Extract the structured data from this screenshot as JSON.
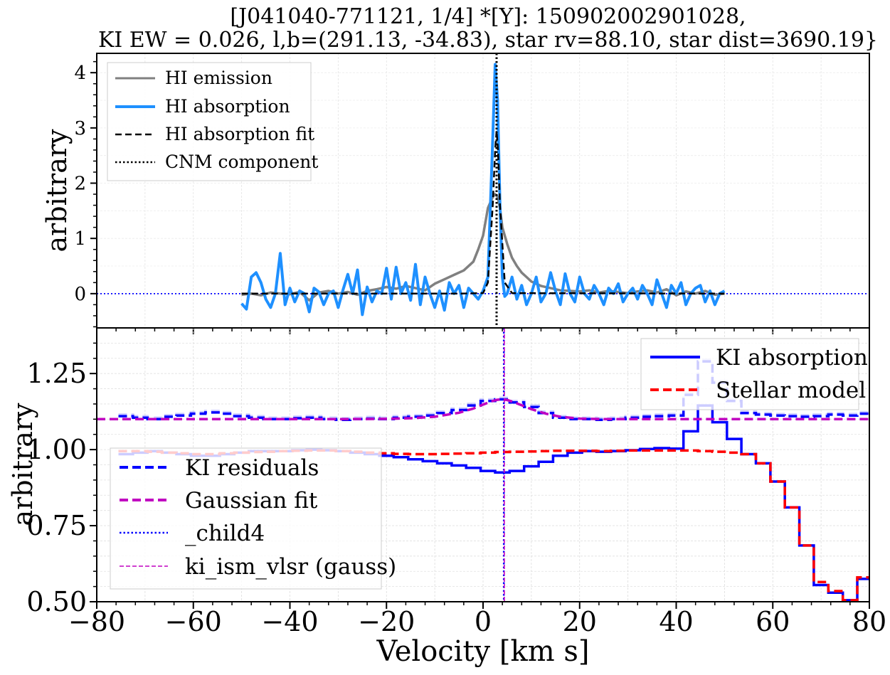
{
  "title": {
    "line1": "[J041040-771121, 1/4] *[Y]: 150902002901028,",
    "line2": "KI EW = 0.026, l,b=(291.13, -34.83), star rv=88.10, star dist=3690.19}"
  },
  "chart_data": [
    {
      "type": "line",
      "panel": "top",
      "ylabel": "arbitrary",
      "xlim": [
        -80,
        80
      ],
      "ylim": [
        -0.62,
        4.35
      ],
      "y_ticks": [
        0,
        1,
        2,
        3,
        4
      ],
      "y_tick_labels": [
        "0",
        "1",
        "2",
        "3",
        "4"
      ],
      "grid": true,
      "legend_position": "upper-left",
      "legend": [
        {
          "label": "HI emission",
          "color": "#808080",
          "style": "solid"
        },
        {
          "label": "HI absorption",
          "color": "#1e90ff",
          "style": "solid"
        },
        {
          "label": "HI absorption fit",
          "color": "#000000",
          "style": "dashed"
        },
        {
          "label": "CNM component",
          "color": "#000000",
          "style": "dotted"
        }
      ],
      "reference_lines": {
        "cnm_component_x": 2.8,
        "zero_line_y": 0
      },
      "series": [
        {
          "name": "HI emission",
          "color": "#808080",
          "x": [
            -50,
            -48,
            -46,
            -44,
            -42,
            -40,
            -38,
            -36,
            -34,
            -32,
            -30,
            -28,
            -26,
            -24,
            -22,
            -20,
            -18,
            -16,
            -14,
            -12,
            -10,
            -8,
            -6,
            -4,
            -2,
            -1,
            0,
            1,
            2,
            2.5,
            3,
            3.5,
            4,
            5,
            6,
            7,
            8,
            9,
            10,
            12,
            14,
            16,
            18,
            20,
            22,
            24,
            26,
            28,
            30,
            32,
            34,
            36,
            38,
            40,
            42,
            44,
            46,
            48,
            50
          ],
          "y": [
            -0.02,
            0.0,
            -0.03,
            0.02,
            0.0,
            -0.01,
            0.03,
            -0.12,
            0.02,
            0.05,
            0.0,
            0.03,
            -0.02,
            0.05,
            0.08,
            0.12,
            0.09,
            0.14,
            0.1,
            0.06,
            0.18,
            0.26,
            0.34,
            0.42,
            0.58,
            0.8,
            1.05,
            1.55,
            1.75,
            1.8,
            1.75,
            1.55,
            1.2,
            0.9,
            0.65,
            0.5,
            0.38,
            0.3,
            0.22,
            0.14,
            0.1,
            0.06,
            0.05,
            0.04,
            0.06,
            0.02,
            0.05,
            0.03,
            0.01,
            0.04,
            0.06,
            0.02,
            0.08,
            -0.03,
            0.04,
            0.0,
            0.05,
            -0.02,
            0.0
          ]
        },
        {
          "name": "HI absorption",
          "color": "#1e90ff",
          "x": [
            -50,
            -49,
            -48,
            -47,
            -46,
            -45,
            -44,
            -43,
            -42,
            -41,
            -40,
            -39,
            -38,
            -37,
            -36,
            -35,
            -34,
            -33,
            -32,
            -31,
            -30,
            -29,
            -28,
            -27,
            -26,
            -25,
            -24,
            -23,
            -22,
            -21,
            -20,
            -19,
            -18,
            -17,
            -16,
            -15,
            -14,
            -13,
            -12,
            -11,
            -10,
            -9,
            -8,
            -7,
            -6,
            -5,
            -4,
            -3,
            -2,
            -1,
            0,
            1,
            2,
            2.5,
            3,
            3.5,
            4,
            4.5,
            5,
            6,
            7,
            8,
            9,
            10,
            11,
            12,
            13,
            14,
            15,
            16,
            17,
            18,
            19,
            20,
            21,
            22,
            23,
            24,
            25,
            26,
            27,
            28,
            29,
            30,
            31,
            32,
            33,
            34,
            35,
            36,
            37,
            38,
            39,
            40,
            41,
            42,
            43,
            44,
            45,
            46,
            47,
            48,
            49,
            50
          ],
          "y": [
            -0.18,
            -0.28,
            0.3,
            0.38,
            0.2,
            -0.1,
            -0.25,
            0.0,
            0.73,
            -0.2,
            0.1,
            -0.15,
            0.05,
            0.0,
            -0.33,
            0.1,
            0.03,
            -0.2,
            0.0,
            0.05,
            -0.25,
            0.07,
            0.35,
            0.0,
            0.43,
            -0.38,
            0.12,
            -0.15,
            0.05,
            0.0,
            0.46,
            -0.1,
            0.48,
            0.0,
            0.2,
            -0.12,
            0.53,
            -0.2,
            0.3,
            0.0,
            -0.25,
            0.05,
            -0.3,
            0.2,
            0.0,
            0.15,
            -0.25,
            0.1,
            0.0,
            -0.1,
            0.05,
            0.3,
            2.8,
            4.15,
            3.5,
            1.6,
            0.3,
            -0.05,
            0.0,
            0.3,
            -0.1,
            0.15,
            -0.2,
            0.0,
            0.3,
            -0.15,
            0.0,
            0.38,
            0.05,
            -0.2,
            0.36,
            0.0,
            -0.15,
            0.3,
            0.0,
            -0.1,
            0.15,
            0.0,
            -0.2,
            0.1,
            0.0,
            0.18,
            -0.15,
            0.0,
            0.1,
            -0.1,
            0.15,
            0.0,
            -0.2,
            0.25,
            0.0,
            -0.25,
            0.15,
            0.0,
            0.2,
            -0.2,
            0.0,
            0.1,
            0.15,
            -0.15,
            0.05,
            -0.2,
            0.0,
            0.05
          ]
        },
        {
          "name": "HI absorption fit",
          "color": "#000000",
          "x": [
            -50,
            -5,
            0,
            1,
            2,
            2.5,
            2.8,
            3.1,
            3.5,
            4.5,
            6,
            50
          ],
          "y": [
            0,
            0,
            0.01,
            0.2,
            1.6,
            2.6,
            2.95,
            2.6,
            1.6,
            0.2,
            0.01,
            0
          ]
        }
      ]
    },
    {
      "type": "line",
      "panel": "bottom",
      "xlabel": "Velocity [km s]",
      "ylabel": "arbitrary",
      "xlim": [
        -80,
        80
      ],
      "ylim": [
        0.5,
        1.4
      ],
      "x_ticks": [
        -80,
        -60,
        -40,
        -20,
        0,
        20,
        40,
        60,
        80
      ],
      "x_tick_labels": [
        "−80",
        "−60",
        "−40",
        "−20",
        "0",
        "20",
        "40",
        "60",
        "80"
      ],
      "y_ticks": [
        0.5,
        0.75,
        1.0,
        1.25
      ],
      "y_tick_labels": [
        "0.50",
        "0.75",
        "1.00",
        "1.25"
      ],
      "grid": true,
      "reference_lines": {
        "child4_x": 4.3,
        "ki_ism_vlsr_gauss_x": 4.4,
        "gaussian_baseline_y": 1.1
      },
      "legend_top_right": [
        {
          "label": "KI absorption",
          "color": "#0000ff",
          "style": "solid"
        },
        {
          "label": "Stellar model",
          "color": "#ff0000",
          "style": "dashed"
        }
      ],
      "legend_lower_left": [
        {
          "label": "KI residuals",
          "color": "#0000ff",
          "style": "dashed"
        },
        {
          "label": "Gaussian fit",
          "color": "#c000c0",
          "style": "dashed"
        },
        {
          "label": "_child4",
          "color": "#0000ff",
          "style": "dotted"
        },
        {
          "label": "ki_ism_vlsr (gauss)",
          "color": "#c000c0",
          "style": "dashed-thin"
        }
      ],
      "series": [
        {
          "name": "KI absorption",
          "color": "#0000ff",
          "x": [
            -74,
            -71,
            -68,
            -65,
            -62,
            -59,
            -56,
            -53,
            -50,
            -47,
            -44,
            -41,
            -38,
            -35,
            -32,
            -29,
            -26,
            -23,
            -20,
            -17,
            -14,
            -11,
            -8,
            -5,
            -2,
            1,
            4,
            7,
            10,
            13,
            16,
            19,
            22,
            25,
            28,
            31,
            34,
            37,
            40,
            43,
            46,
            49,
            52,
            55,
            58,
            61,
            64,
            67,
            70,
            73,
            76,
            79
          ],
          "y": [
            0.985,
            0.99,
            0.995,
            0.99,
            0.985,
            0.98,
            0.98,
            0.985,
            0.99,
            0.995,
            0.995,
            0.995,
            0.998,
            1.0,
            0.998,
            0.995,
            0.99,
            0.985,
            0.98,
            0.975,
            0.968,
            0.962,
            0.955,
            0.948,
            0.94,
            0.93,
            0.925,
            0.93,
            0.945,
            0.96,
            0.98,
            0.99,
            0.995,
            0.993,
            0.995,
            0.998,
            1.002,
            1.005,
            1.003,
            1.06,
            1.145,
            1.09,
            1.035,
            0.985,
            0.955,
            0.895,
            0.81,
            0.685,
            0.555,
            0.53,
            0.505,
            0.575
          ]
        },
        {
          "name": "Stellar model",
          "color": "#ff0000",
          "x": [
            -74,
            -71,
            -68,
            -65,
            -62,
            -59,
            -56,
            -53,
            -50,
            -47,
            -44,
            -41,
            -38,
            -35,
            -32,
            -29,
            -26,
            -23,
            -20,
            -17,
            -14,
            -11,
            -8,
            -5,
            -2,
            1,
            4,
            7,
            10,
            13,
            16,
            19,
            22,
            25,
            28,
            31,
            34,
            37,
            40,
            43,
            46,
            49,
            52,
            55,
            58,
            61,
            64,
            67,
            70,
            73,
            76,
            79
          ],
          "y": [
            0.995,
            0.995,
            0.993,
            0.99,
            0.988,
            0.985,
            0.985,
            0.988,
            0.99,
            0.992,
            0.993,
            0.995,
            0.996,
            0.997,
            0.997,
            0.995,
            0.993,
            0.99,
            0.988,
            0.986,
            0.985,
            0.985,
            0.986,
            0.987,
            0.988,
            0.99,
            0.992,
            0.993,
            0.994,
            0.995,
            0.996,
            0.996,
            0.996,
            0.995,
            0.996,
            0.997,
            0.997,
            0.997,
            0.997,
            0.997,
            0.995,
            0.993,
            0.99,
            0.985,
            0.955,
            0.895,
            0.81,
            0.685,
            0.565,
            0.535,
            0.505,
            0.58
          ]
        },
        {
          "name": "KI residuals",
          "color": "#0000ff",
          "x": [
            -74,
            -71,
            -68,
            -65,
            -62,
            -59,
            -56,
            -53,
            -50,
            -47,
            -44,
            -41,
            -38,
            -35,
            -32,
            -29,
            -26,
            -23,
            -20,
            -17,
            -14,
            -11,
            -8,
            -5,
            -2,
            1,
            4,
            7,
            10,
            13,
            16,
            19,
            22,
            25,
            28,
            31,
            34,
            37,
            40,
            43,
            46,
            49,
            52,
            55,
            58,
            61,
            64,
            67,
            70,
            73,
            76,
            79
          ],
          "y": [
            1.11,
            1.105,
            1.1,
            1.108,
            1.112,
            1.118,
            1.122,
            1.118,
            1.11,
            1.105,
            1.1,
            1.1,
            1.103,
            1.105,
            1.1,
            1.098,
            1.1,
            1.102,
            1.1,
            1.105,
            1.108,
            1.112,
            1.12,
            1.13,
            1.145,
            1.16,
            1.165,
            1.155,
            1.14,
            1.12,
            1.105,
            1.1,
            1.1,
            1.098,
            1.1,
            1.105,
            1.108,
            1.11,
            1.112,
            1.18,
            1.29,
            1.22,
            1.16,
            1.12,
            1.115,
            1.112,
            1.11,
            1.108,
            1.11,
            1.115,
            1.112,
            1.118
          ]
        },
        {
          "name": "Gaussian fit",
          "color": "#c000c0",
          "x": [
            -80,
            -30,
            -20,
            -15,
            -10,
            -5,
            -2,
            0,
            2,
            3,
            4,
            5,
            6,
            8,
            10,
            13,
            16,
            20,
            25,
            30,
            80
          ],
          "y": [
            1.1,
            1.1,
            1.101,
            1.103,
            1.108,
            1.121,
            1.135,
            1.148,
            1.16,
            1.164,
            1.165,
            1.163,
            1.158,
            1.146,
            1.133,
            1.118,
            1.108,
            1.102,
            1.1,
            1.1,
            1.1
          ]
        }
      ]
    }
  ]
}
